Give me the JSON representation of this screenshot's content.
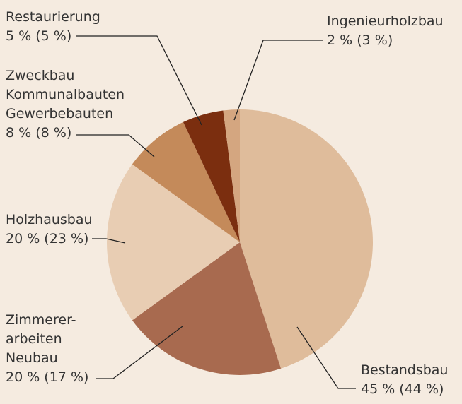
{
  "chart_data": {
    "type": "pie",
    "categories": [
      [
        "Bestandsbau"
      ],
      [
        "Zimmerer-",
        "arbeiten",
        "Neubau"
      ],
      [
        "Holzhausbau"
      ],
      [
        "Zweckbau",
        "Kommunalbauten",
        "Gewerbebauten"
      ],
      [
        "Restaurierung"
      ],
      [
        "Ingenieurholzbau"
      ]
    ],
    "values": [
      45,
      20,
      20,
      8,
      5,
      2
    ],
    "value_labels": [
      "45 % (44 %)",
      "20 % (17 %)",
      "20 % (23 %)",
      "8 % (8 %)",
      "5 % (5 %)",
      "2 % (3 %)"
    ],
    "colors": [
      "#dfbc9b",
      "#a86a4f",
      "#e8cdb3",
      "#c48a5a",
      "#7b2e0f",
      "#d4a680"
    ]
  }
}
